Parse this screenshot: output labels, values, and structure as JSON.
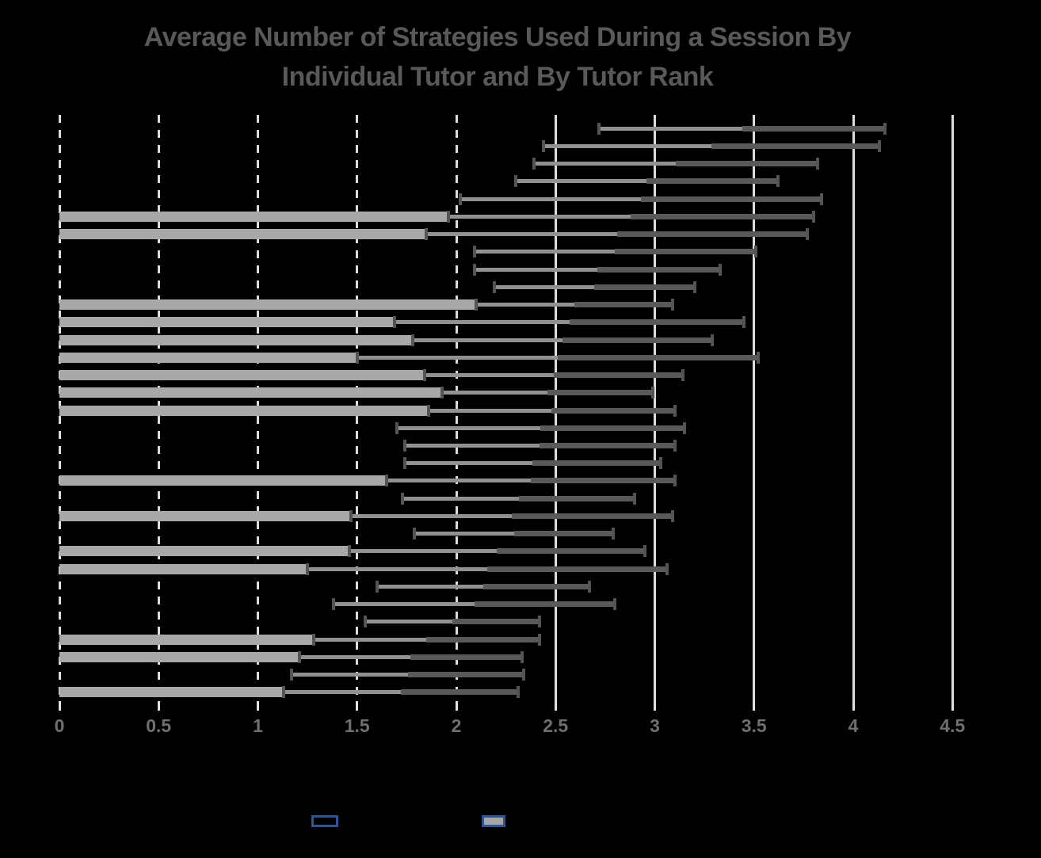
{
  "title": {
    "line1": "Average Number of Strategies Used During a Session By",
    "line2": "Individual Tutor and By Tutor Rank"
  },
  "colors": {
    "background": "#000000",
    "bar_fill": "#a8a8a8",
    "error_inner_segment": "#919191",
    "error_outer_segment": "#595959",
    "error_cap": "#545454",
    "gridline": "#dcdcdc",
    "title_text": "#595959",
    "axis_label_text": "#6f6f6f",
    "legend_border": "#2f5496",
    "legend_filled_swatch": "#a6a6a6"
  },
  "chart_data": {
    "type": "bar",
    "orientation": "horizontal",
    "title": "Average Number of Strategies Used During a Session By Individual Tutor and By Tutor Rank",
    "xlabel": "",
    "ylabel": "",
    "xlim": [
      0,
      4.5
    ],
    "grid": true,
    "x_axis": {
      "tick_values": [
        0,
        0.5,
        1,
        1.5,
        2,
        2.5,
        3,
        3.5,
        4,
        4.5
      ],
      "tick_labels": [
        "0",
        "0.5",
        "1",
        "1.5",
        "2",
        "2.5",
        "3",
        "3.5",
        "4",
        "4.5"
      ],
      "dashed_gridline_max_value": 2.0
    },
    "legend": {
      "position": "bottom",
      "entries": [
        {
          "swatch": "outline-empty",
          "label": ""
        },
        {
          "swatch": "outline-gray-filled",
          "label": ""
        }
      ]
    },
    "series_note": "Rows top to bottom. bar=null means no visible bar (error bar only); err_low/err_high are the left/right cap positions of the error range; the range darkens at its midpoint.",
    "rows": [
      {
        "bar": null,
        "err_low": 2.72,
        "err_high": 4.16
      },
      {
        "bar": null,
        "err_low": 2.44,
        "err_high": 4.13
      },
      {
        "bar": null,
        "err_low": 2.39,
        "err_high": 3.82
      },
      {
        "bar": null,
        "err_low": 2.3,
        "err_high": 3.62
      },
      {
        "bar": null,
        "err_low": 2.02,
        "err_high": 3.84
      },
      {
        "bar": 1.96,
        "err_low": 1.96,
        "err_high": 3.8
      },
      {
        "bar": 1.85,
        "err_low": 1.85,
        "err_high": 3.77
      },
      {
        "bar": null,
        "err_low": 2.09,
        "err_high": 3.51
      },
      {
        "bar": null,
        "err_low": 2.09,
        "err_high": 3.33
      },
      {
        "bar": null,
        "err_low": 2.19,
        "err_high": 3.2
      },
      {
        "bar": 2.1,
        "err_low": 2.1,
        "err_high": 3.09
      },
      {
        "bar": 1.69,
        "err_low": 1.69,
        "err_high": 3.45
      },
      {
        "bar": 1.78,
        "err_low": 1.78,
        "err_high": 3.29
      },
      {
        "bar": 1.5,
        "err_low": 1.5,
        "err_high": 3.52
      },
      {
        "bar": 1.84,
        "err_low": 1.84,
        "err_high": 3.14
      },
      {
        "bar": 1.93,
        "err_low": 1.93,
        "err_high": 2.99
      },
      {
        "bar": 1.86,
        "err_low": 1.86,
        "err_high": 3.1
      },
      {
        "bar": null,
        "err_low": 1.7,
        "err_high": 3.15
      },
      {
        "bar": null,
        "err_low": 1.74,
        "err_high": 3.1
      },
      {
        "bar": null,
        "err_low": 1.74,
        "err_high": 3.03
      },
      {
        "bar": 1.65,
        "err_low": 1.65,
        "err_high": 3.1
      },
      {
        "bar": null,
        "err_low": 1.73,
        "err_high": 2.9
      },
      {
        "bar": 1.47,
        "err_low": 1.47,
        "err_high": 3.09
      },
      {
        "bar": null,
        "err_low": 1.79,
        "err_high": 2.79
      },
      {
        "bar": 1.46,
        "err_low": 1.46,
        "err_high": 2.95
      },
      {
        "bar": 1.25,
        "err_low": 1.25,
        "err_high": 3.06
      },
      {
        "bar": null,
        "err_low": 1.6,
        "err_high": 2.67
      },
      {
        "bar": null,
        "err_low": 1.38,
        "err_high": 2.8
      },
      {
        "bar": null,
        "err_low": 1.54,
        "err_high": 2.42
      },
      {
        "bar": 1.28,
        "err_low": 1.28,
        "err_high": 2.42
      },
      {
        "bar": 1.21,
        "err_low": 1.21,
        "err_high": 2.33
      },
      {
        "bar": null,
        "err_low": 1.17,
        "err_high": 2.34
      },
      {
        "bar": 1.13,
        "err_low": 1.13,
        "err_high": 2.31
      }
    ]
  }
}
